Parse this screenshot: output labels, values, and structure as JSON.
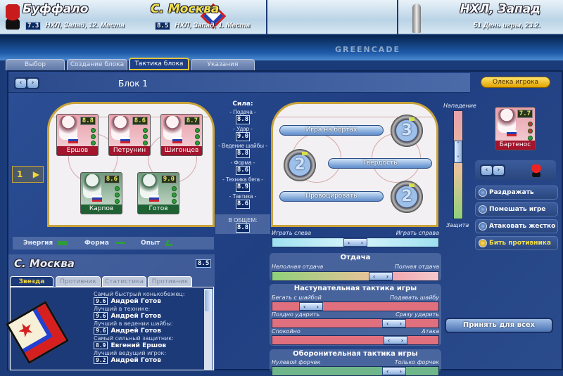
{
  "header": {
    "home": {
      "name": "Буффало",
      "rating": "7.3",
      "info": "НХЛ, Запад, 12. Места"
    },
    "away": {
      "name": "С. Москва",
      "rating": "8.5",
      "info": "НХЛ, Запад, 1. Места"
    },
    "league": {
      "name": "НХЛ, Запад",
      "info": "51 День игры, 23.2."
    },
    "watermark": "GREENCADE"
  },
  "tabs": [
    {
      "label": "Выбор"
    },
    {
      "label": "Создание блока"
    },
    {
      "label": "Тактика блока",
      "active": true
    },
    {
      "label": "Указания"
    }
  ],
  "block": {
    "title": "Блок 1",
    "scout_button": "Олека игрока",
    "line_number": "1"
  },
  "players": [
    {
      "name": "Ершов",
      "rating": "8.8",
      "role": "forward"
    },
    {
      "name": "Петрунин",
      "rating": "8.6",
      "role": "forward"
    },
    {
      "name": "Шигонцев",
      "rating": "8.7",
      "role": "forward"
    },
    {
      "name": "Карпов",
      "rating": "8.6",
      "role": "defense"
    },
    {
      "name": "Готов",
      "rating": "9.0",
      "role": "defense"
    }
  ],
  "legend": {
    "energy": "Энергия",
    "form": "Форма",
    "experience": "Опыт"
  },
  "strength": {
    "title": "Сила:",
    "items": [
      {
        "label": "- Подача -",
        "value": "8.8"
      },
      {
        "label": "- Удар -",
        "value": "9.0"
      },
      {
        "label": "- Ведение шайбы -",
        "value": "8.8"
      },
      {
        "label": "- Форма -",
        "value": "8.6"
      },
      {
        "label": "- Техника бега -",
        "value": "8.9"
      },
      {
        "label": "- Тактика -",
        "value": "8.6"
      }
    ],
    "overall_label": "В ОБЩЕМ:",
    "overall": "8.8"
  },
  "tactics": {
    "board_play": {
      "label": "Игра на бортах",
      "level": "3"
    },
    "toughness": {
      "label": "Твердость",
      "level": "2"
    },
    "provoke": {
      "label": "Провоцировать",
      "level": "2"
    },
    "side": {
      "left": "Играть слева",
      "right": "Играть справа",
      "value": 0.5
    },
    "attack_defense": {
      "top": "Нападение",
      "bottom": "Защита",
      "value": 0.65
    }
  },
  "opponent": {
    "name": "Бартенос",
    "rating": "7.7",
    "actions": [
      {
        "label": "Раздражать",
        "selected": false
      },
      {
        "label": "Помешать игре",
        "selected": false
      },
      {
        "label": "Атаковать жестко",
        "selected": false
      },
      {
        "label": "Бить противника",
        "selected": true
      }
    ]
  },
  "team_panel": {
    "name": "С. Москва",
    "rating": "8.5",
    "tabs": [
      {
        "label": "Звезда",
        "active": true
      },
      {
        "label": "Противник"
      },
      {
        "label": "Статистика"
      },
      {
        "label": "Противник"
      }
    ],
    "stars": [
      {
        "title": "Самый быстрый конькобежец:",
        "value": "9.6",
        "player": "Андрей Готов"
      },
      {
        "title": "Лучший в технике:",
        "value": "9.6",
        "player": "Андрей Готов"
      },
      {
        "title": "Лучший в ведении шайбы:",
        "value": "9.6",
        "player": "Андрей Готов"
      },
      {
        "title": "Самый сильный защитник:",
        "value": "8.9",
        "player": "Евгений Ершов"
      },
      {
        "title": "Лучший ведущий игрок:",
        "value": "9.2",
        "player": "Андрей Готов"
      }
    ]
  },
  "effort": {
    "title": "Отдача",
    "left": "Неполная отдача",
    "right": "Полная отдача",
    "value": 0.68
  },
  "offense": {
    "title": "Наступательная тактика игры",
    "sliders": [
      {
        "left": "Бегать с шайбой",
        "right": "Подавать шайбу",
        "value": 0.19
      },
      {
        "left": "Поздно ударить",
        "right": "Сразу ударить",
        "value": 0.77
      },
      {
        "left": "Спокойно",
        "right": "Атака",
        "value": 0.78
      }
    ]
  },
  "defense": {
    "title": "Оборонительная тактика игры",
    "left": "Нулевой форчек",
    "right": "Только форчек",
    "value": 0.77
  },
  "apply_all": "Принять для всех",
  "colors": {
    "accent": "#e7c43a",
    "forward": "#a4142c",
    "defense": "#1e6234",
    "panel": "#203f82"
  }
}
